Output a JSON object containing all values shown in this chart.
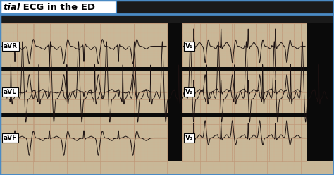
{
  "title_italic": "tial",
  "title_bold": " ECG in the ED",
  "bg_outer": "#1a1a1a",
  "border_color": "#4a8ac4",
  "title_bg": "#ffffff",
  "ecg_paper_color": "#c8b898",
  "ecg_grid_major": "#c09878",
  "ecg_grid_minor": "#d4b090",
  "black_bar": "#0a0a0a",
  "rhythm_bg": "#bfaa88",
  "labels_left": [
    "aVR",
    "aVL",
    "aVF"
  ],
  "labels_right": [
    "V₁",
    "V₂",
    "V₃"
  ],
  "ecg_line_color": "#1a1010",
  "figsize": [
    4.74,
    2.48
  ],
  "dpi": 100
}
